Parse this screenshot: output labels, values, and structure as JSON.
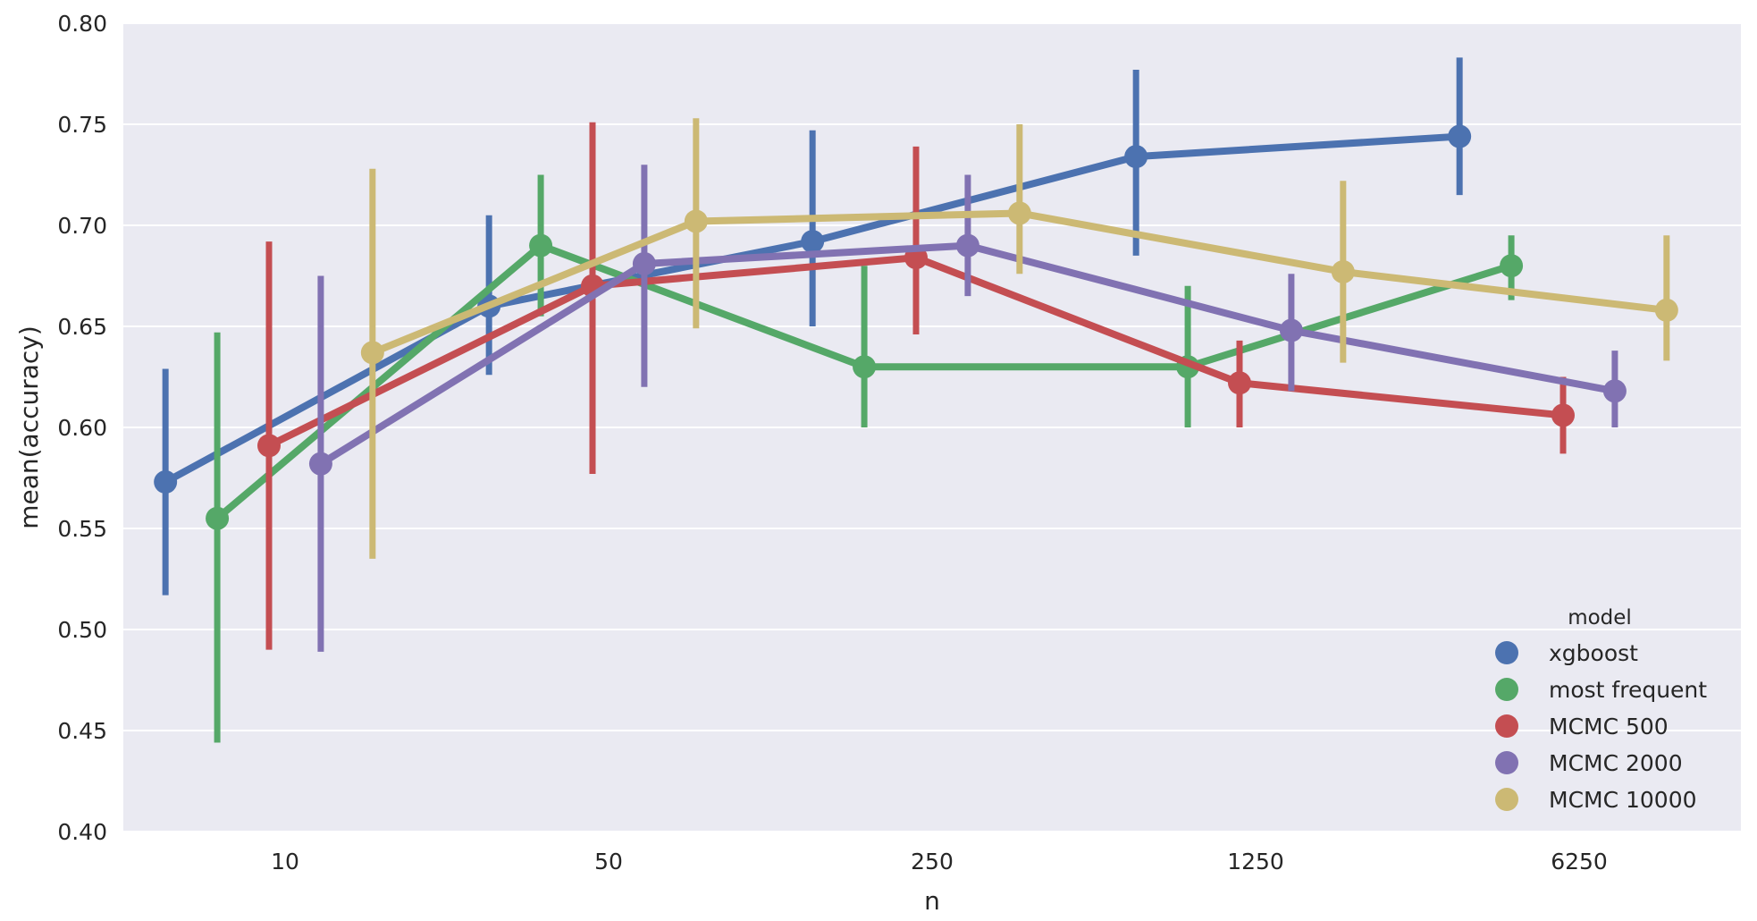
{
  "chart_data": {
    "type": "line",
    "title": "",
    "xlabel": "n",
    "ylabel": "mean(accuracy)",
    "categories": [
      "10",
      "50",
      "250",
      "1250",
      "6250"
    ],
    "ylim": [
      0.4,
      0.8
    ],
    "yticks": [
      "0.40",
      "0.45",
      "0.50",
      "0.55",
      "0.60",
      "0.65",
      "0.70",
      "0.75",
      "0.80"
    ],
    "grid": true,
    "legend": {
      "title": "model",
      "placement": "bottom-right"
    },
    "series": [
      {
        "name": "xgboost",
        "color": "#4c72b0",
        "values": [
          0.573,
          0.66,
          0.692,
          0.734,
          0.744
        ],
        "ci_low": [
          0.517,
          0.626,
          0.65,
          0.685,
          0.715
        ],
        "ci_high": [
          0.629,
          0.705,
          0.747,
          0.777,
          0.783
        ]
      },
      {
        "name": "most frequent",
        "color": "#55a868",
        "values": [
          0.555,
          0.69,
          0.63,
          0.63,
          0.68
        ],
        "ci_low": [
          0.444,
          0.655,
          0.6,
          0.6,
          0.663
        ],
        "ci_high": [
          0.647,
          0.725,
          0.68,
          0.67,
          0.695
        ]
      },
      {
        "name": "MCMC 500",
        "color": "#c44e52",
        "values": [
          0.591,
          0.67,
          0.684,
          0.622,
          0.606
        ],
        "ci_low": [
          0.49,
          0.577,
          0.646,
          0.6,
          0.587
        ],
        "ci_high": [
          0.692,
          0.751,
          0.739,
          0.643,
          0.625
        ]
      },
      {
        "name": "MCMC 2000",
        "color": "#8172b2",
        "values": [
          0.582,
          0.681,
          0.69,
          0.648,
          0.618
        ],
        "ci_low": [
          0.489,
          0.62,
          0.665,
          0.618,
          0.6
        ],
        "ci_high": [
          0.675,
          0.73,
          0.725,
          0.676,
          0.638
        ]
      },
      {
        "name": "MCMC 10000",
        "color": "#ccb974",
        "values": [
          0.637,
          0.702,
          0.706,
          0.677,
          0.658
        ],
        "ci_low": [
          0.535,
          0.649,
          0.676,
          0.632,
          0.633
        ],
        "ci_high": [
          0.728,
          0.753,
          0.75,
          0.722,
          0.695
        ]
      }
    ]
  }
}
